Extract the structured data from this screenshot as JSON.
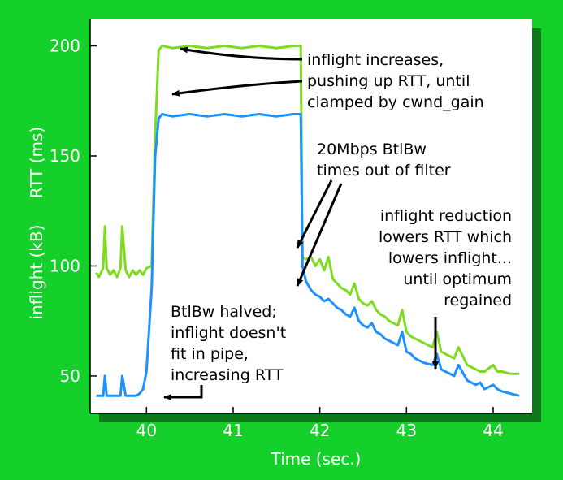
{
  "chart_data": {
    "type": "line",
    "title": "",
    "xlabel": "Time (sec.)",
    "ylabel_top": "RTT (ms)",
    "ylabel_bottom": "inflight (kB)",
    "xlim": [
      39.35,
      44.45
    ],
    "ylim": [
      33,
      212
    ],
    "x_ticks": [
      40,
      41,
      42,
      43,
      44
    ],
    "y_ticks": [
      50,
      100,
      150,
      200
    ],
    "grid": false,
    "colors": {
      "rtt": "#7ddc1f",
      "inflight": "#1e90ff",
      "background": "#15cf2b",
      "plot_background": "#ffffff"
    },
    "series": [
      {
        "key": "rtt",
        "x": [
          39.42,
          39.45,
          39.5,
          39.52,
          39.54,
          39.58,
          39.62,
          39.66,
          39.7,
          39.72,
          39.76,
          39.8,
          39.84,
          39.88,
          39.92,
          39.96,
          40.0,
          40.06,
          40.1,
          40.14,
          40.18,
          40.3,
          40.5,
          40.7,
          40.9,
          41.1,
          41.3,
          41.5,
          41.7,
          41.78,
          41.8,
          41.84,
          41.9,
          41.95,
          42.0,
          42.05,
          42.1,
          42.15,
          42.2,
          42.25,
          42.3,
          42.35,
          42.4,
          42.45,
          42.5,
          42.55,
          42.6,
          42.65,
          42.7,
          42.75,
          42.8,
          42.9,
          42.95,
          43.0,
          43.05,
          43.1,
          43.2,
          43.3,
          43.35,
          43.4,
          43.5,
          43.55,
          43.6,
          43.7,
          43.75,
          43.8,
          43.85,
          43.9,
          44.0,
          44.05,
          44.1,
          44.2,
          44.3
        ],
        "values": [
          97,
          95,
          99,
          118,
          99,
          96,
          98,
          95,
          99,
          118,
          98,
          95,
          98,
          96,
          98,
          96,
          99,
          100,
          160,
          198,
          200,
          199,
          200,
          199,
          200,
          199,
          200,
          199,
          200,
          200,
          104,
          103,
          104,
          100,
          103,
          98,
          104,
          94,
          92,
          90,
          89,
          87,
          92,
          85,
          83,
          82,
          84,
          80,
          78,
          77,
          75,
          73,
          80,
          70,
          68,
          67,
          65,
          63,
          70,
          61,
          59,
          58,
          63,
          55,
          54,
          53,
          52,
          52,
          55,
          52,
          52,
          51,
          51
        ]
      },
      {
        "key": "inflight",
        "x": [
          39.42,
          39.5,
          39.52,
          39.54,
          39.58,
          39.62,
          39.66,
          39.7,
          39.72,
          39.76,
          39.8,
          39.84,
          39.88,
          39.92,
          39.96,
          40.0,
          40.06,
          40.1,
          40.14,
          40.18,
          40.3,
          40.5,
          40.7,
          40.9,
          41.1,
          41.3,
          41.5,
          41.7,
          41.78,
          41.8,
          41.84,
          41.9,
          41.95,
          42.0,
          42.05,
          42.1,
          42.15,
          42.2,
          42.25,
          42.3,
          42.35,
          42.4,
          42.45,
          42.5,
          42.55,
          42.6,
          42.65,
          42.7,
          42.75,
          42.8,
          42.9,
          42.95,
          43.0,
          43.05,
          43.1,
          43.2,
          43.3,
          43.35,
          43.4,
          43.5,
          43.55,
          43.6,
          43.7,
          43.75,
          43.8,
          43.85,
          43.9,
          44.0,
          44.05,
          44.1,
          44.2,
          44.3
        ],
        "values": [
          41,
          41,
          50,
          41,
          41,
          41,
          41,
          41,
          50,
          41,
          41,
          41,
          41,
          42,
          44,
          52,
          90,
          150,
          167,
          169,
          168,
          169,
          168,
          169,
          168,
          169,
          168,
          169,
          169,
          100,
          93,
          89,
          87,
          86,
          84,
          85,
          83,
          81,
          80,
          78,
          77,
          81,
          75,
          73,
          72,
          74,
          70,
          69,
          67,
          66,
          64,
          70,
          61,
          60,
          58,
          56,
          55,
          60,
          53,
          51,
          50,
          55,
          48,
          47,
          46,
          47,
          44,
          46,
          44,
          43,
          42,
          41
        ]
      }
    ],
    "annotations": [
      {
        "key": "inflight_increases",
        "lines": [
          "inflight increases,",
          "pushing up RTT, until",
          "clamped by cwnd_gain"
        ]
      },
      {
        "key": "btlbw_timeout",
        "lines": [
          "20Mbps BtlBw",
          "times out of filter"
        ]
      },
      {
        "key": "inflight_reduction",
        "lines": [
          "inflight reduction",
          "lowers RTT which",
          "lowers inflight...",
          "until optimum",
          "regained"
        ]
      },
      {
        "key": "btlbw_halved",
        "lines": [
          "BtlBw halved;",
          "inflight doesn't",
          "fit in pipe,",
          "increasing RTT"
        ]
      }
    ]
  }
}
